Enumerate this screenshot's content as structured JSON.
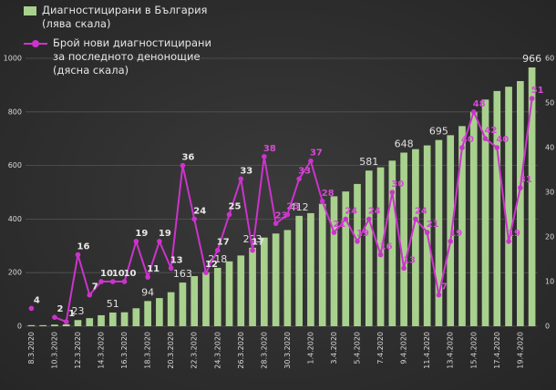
{
  "chart_data": {
    "type": "bar-line",
    "categories": [
      "8.3.2020",
      null,
      "10.3.2020",
      null,
      "12.3.2020",
      null,
      "14.3.2020",
      null,
      "16.3.2020",
      null,
      "18.3.2020",
      null,
      "20.3.2020",
      null,
      "22.3.2020",
      null,
      "24.3.2020",
      null,
      "26.3.2020",
      null,
      "28.3.2020",
      null,
      "30.3.2020",
      null,
      "1.4.2020",
      null,
      "3.4.2020",
      null,
      "5.4.2020",
      null,
      "7.4.2020",
      null,
      "9.4.2020",
      null,
      "11.4.2020",
      null,
      "13.4.2020",
      null,
      "15.4.2020",
      null,
      "17.4.2020",
      null,
      "19.4.2020",
      null
    ],
    "series": [
      {
        "name": "Диагностицирани в България\n(лява скала)",
        "type": "bar",
        "color": "#a9d18e",
        "values": [
          4,
          4,
          6,
          7,
          23,
          30,
          41,
          51,
          52,
          67,
          94,
          105,
          127,
          163,
          187,
          201,
          218,
          242,
          264,
          293,
          331,
          346,
          359,
          412,
          422,
          457,
          485,
          503,
          531,
          581,
          593,
          618,
          648,
          661,
          675,
          695,
          713,
          747,
          800,
          846,
          878,
          894,
          915,
          966
        ],
        "value_labels": [
          null,
          null,
          null,
          null,
          "23",
          null,
          null,
          "51",
          null,
          null,
          "94",
          null,
          null,
          "163",
          null,
          null,
          "218",
          null,
          null,
          "293",
          null,
          null,
          null,
          "412",
          null,
          null,
          null,
          null,
          null,
          "581",
          null,
          null,
          "648",
          null,
          null,
          "695",
          null,
          null,
          null,
          null,
          null,
          null,
          null,
          "966"
        ]
      },
      {
        "name": "Брой нови диагностицирани\nза последното денонощие\n(дясна скала)",
        "type": "line",
        "axis": "y2",
        "color": "#cc33cc",
        "values": [
          4,
          null,
          2,
          1,
          16,
          7,
          10,
          10,
          10,
          19,
          11,
          19,
          13,
          36,
          24,
          12,
          17,
          25,
          33,
          17,
          38,
          23,
          25,
          33,
          37,
          28,
          21,
          24,
          19,
          24,
          16,
          30,
          13,
          24,
          21,
          7,
          19,
          40,
          48,
          42,
          40,
          19,
          31,
          51
        ]
      }
    ],
    "ylim": [
      0,
      1000
    ],
    "yticks": [
      0,
      200,
      400,
      600,
      800,
      1000
    ],
    "y2lim": [
      0,
      60
    ],
    "y2ticks": [
      0,
      10,
      20,
      30,
      40,
      50,
      60
    ],
    "grid": true
  }
}
